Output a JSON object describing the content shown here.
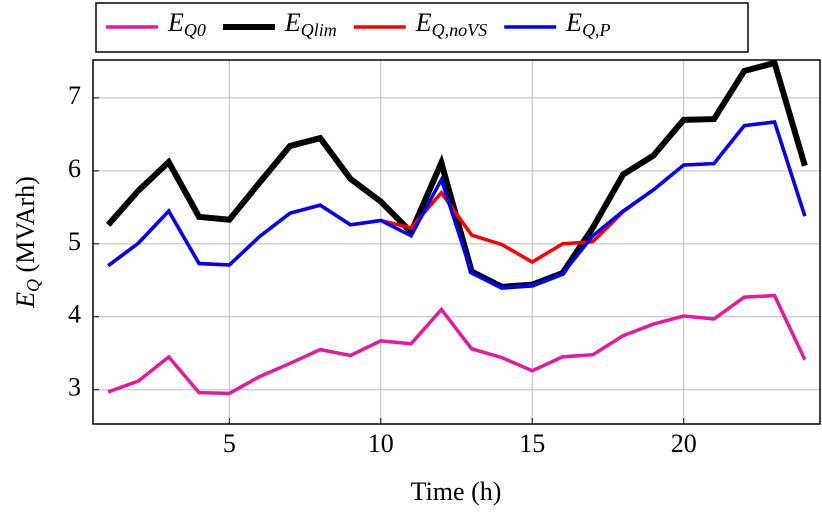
{
  "chart_data": {
    "type": "line",
    "x_label": "Time (h)",
    "y_label": "E_Q (MVArh)",
    "x": [
      1,
      2,
      3,
      4,
      5,
      6,
      7,
      8,
      9,
      10,
      11,
      12,
      13,
      14,
      15,
      16,
      17,
      18,
      19,
      20,
      21,
      22,
      23,
      24
    ],
    "series": [
      {
        "name": "E_Q0",
        "color": "#e6199a",
        "width": 3.5,
        "values": [
          2.97,
          3.12,
          3.45,
          2.96,
          2.95,
          3.18,
          3.36,
          3.55,
          3.47,
          3.67,
          3.63,
          4.1,
          3.56,
          3.44,
          3.26,
          3.45,
          3.48,
          3.74,
          3.9,
          4.01,
          3.97,
          4.27,
          4.29,
          3.41
        ]
      },
      {
        "name": "E_Qlim",
        "color": "#000000",
        "width": 6,
        "values": [
          5.26,
          5.73,
          6.12,
          5.37,
          5.33,
          5.84,
          6.34,
          6.45,
          5.89,
          5.58,
          5.16,
          6.11,
          4.62,
          4.41,
          4.44,
          4.6,
          5.22,
          5.95,
          6.21,
          6.7,
          6.71,
          7.37,
          7.48,
          6.07
        ]
      },
      {
        "name": "E_Q,noVS",
        "color": "#ff0000",
        "width": 3.5,
        "values": [
          4.7,
          5.01,
          5.45,
          4.73,
          4.71,
          5.1,
          5.42,
          5.53,
          5.26,
          5.32,
          5.22,
          5.7,
          5.12,
          4.99,
          4.75,
          5.0,
          5.03,
          5.44,
          5.74,
          6.08,
          6.1,
          6.62,
          6.67,
          5.38
        ]
      },
      {
        "name": "E_Q,P",
        "color": "#0000ff",
        "width": 3.5,
        "values": [
          4.7,
          5.01,
          5.45,
          4.73,
          4.71,
          5.1,
          5.42,
          5.53,
          5.26,
          5.32,
          5.11,
          5.88,
          4.6,
          4.4,
          4.43,
          4.59,
          5.11,
          5.45,
          5.74,
          6.08,
          6.1,
          6.62,
          6.67,
          5.38
        ]
      }
    ],
    "xlim": [
      0.5,
      24.5
    ],
    "ylim": [
      2.53,
      7.52
    ],
    "xticks": [
      5,
      10,
      15,
      20
    ],
    "yticks": [
      3,
      4,
      5,
      6,
      7
    ],
    "grid": true
  }
}
